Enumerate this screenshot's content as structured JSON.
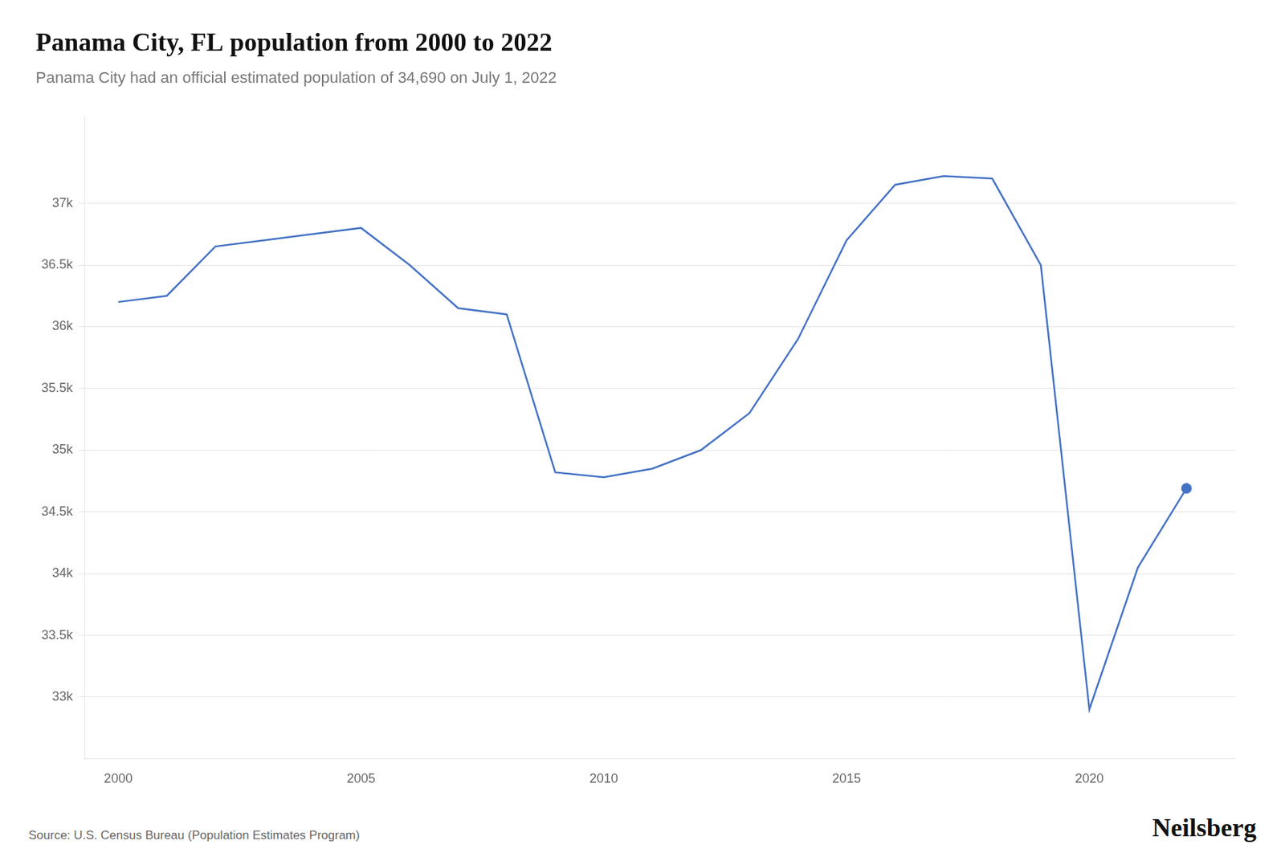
{
  "chart_data": {
    "type": "line",
    "title": "Panama City, FL population from 2000 to 2022",
    "subtitle": "Panama City had an official estimated population of 34,690 on July 1, 2022",
    "annotations": [
      "Source: U.S. Census Bureau (Population Estimates Program)",
      "Neilsberg"
    ],
    "x": [
      2000,
      2001,
      2002,
      2003,
      2004,
      2005,
      2006,
      2007,
      2008,
      2009,
      2010,
      2011,
      2012,
      2013,
      2014,
      2015,
      2016,
      2017,
      2018,
      2019,
      2020,
      2021,
      2022
    ],
    "series": [
      {
        "type": "line",
        "color": "#4472C4",
        "values": [
          36200,
          36250,
          36650,
          36700,
          36750,
          36800,
          36500,
          36150,
          36100,
          34820,
          34780,
          34850,
          35000,
          35300,
          35900,
          36700,
          37150,
          37220,
          37200,
          36500,
          32900,
          34050,
          34690
        ]
      },
      {
        "type": "scatter",
        "color": "#4472C4",
        "x": [
          2022
        ],
        "values": [
          34690
        ]
      }
    ],
    "xlim": [
      1999.3,
      2023.0
    ],
    "xticks": [
      2000,
      2005,
      2010,
      2015,
      2020
    ],
    "ylim": [
      32500,
      37700
    ],
    "yticks": [
      {
        "value": 33000,
        "label": "33k"
      },
      {
        "value": 33500,
        "label": "33.5k"
      },
      {
        "value": 34000,
        "label": "34k"
      },
      {
        "value": 34500,
        "label": "34.5k"
      },
      {
        "value": 35000,
        "label": "35k"
      },
      {
        "value": 35500,
        "label": "35.5k"
      },
      {
        "value": 36000,
        "label": "36k"
      },
      {
        "value": 36500,
        "label": "36.5k"
      },
      {
        "value": 37000,
        "label": "37k"
      }
    ],
    "grid": true
  }
}
